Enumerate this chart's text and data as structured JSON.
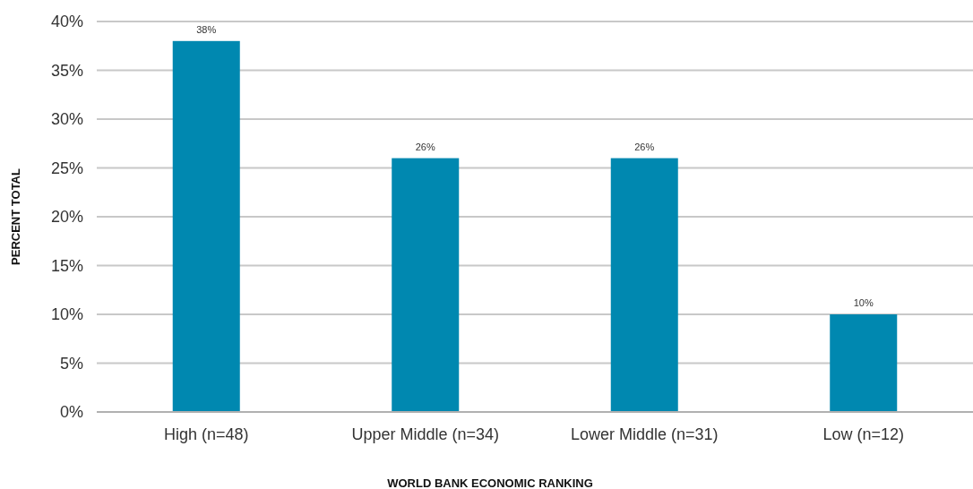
{
  "chart_data": {
    "type": "bar",
    "xlabel": "WORLD BANK ECONOMIC RANKING",
    "ylabel": "PERCENT TOTAL",
    "categories": [
      "High (n=48)",
      "Upper Middle (n=34)",
      "Lower Middle (n=31)",
      "Low (n=12)"
    ],
    "values": [
      38,
      26,
      26,
      10
    ],
    "color": "#0088b0",
    "value_labels": [
      "38%",
      "26%",
      "26%",
      "10%"
    ],
    "ylim": [
      0,
      40
    ],
    "yticks": [
      {
        "value": 0,
        "label": "0%"
      },
      {
        "value": 5,
        "label": "5%"
      },
      {
        "value": 10,
        "label": "10%"
      },
      {
        "value": 15,
        "label": "15%"
      },
      {
        "value": 20,
        "label": "20%"
      },
      {
        "value": 25,
        "label": "25%"
      },
      {
        "value": 30,
        "label": "30%"
      },
      {
        "value": 35,
        "label": "35%"
      },
      {
        "value": 40,
        "label": "40%"
      }
    ],
    "grid": "y"
  }
}
